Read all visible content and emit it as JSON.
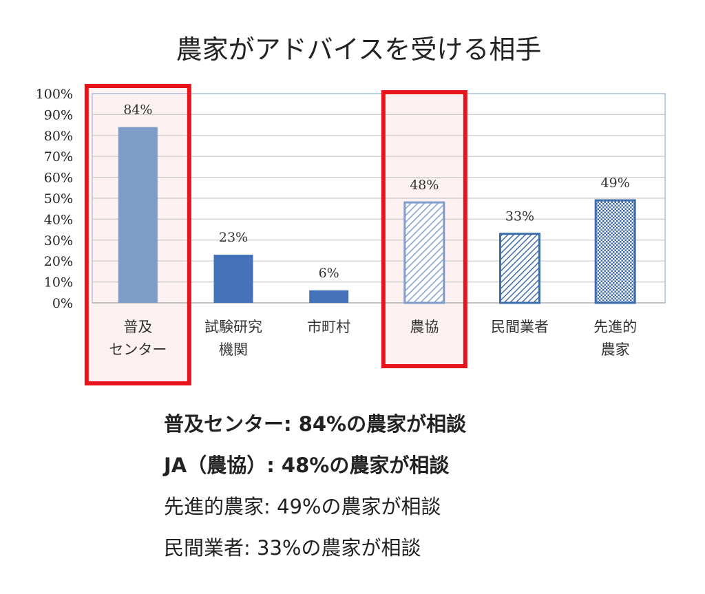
{
  "chart_data": {
    "type": "bar",
    "title": "農家がアドバイスを受ける相手",
    "categories": [
      [
        "普及",
        "センター"
      ],
      [
        "試験研究",
        "機関"
      ],
      [
        "市町村"
      ],
      [
        "農協"
      ],
      [
        "民間業者"
      ],
      [
        "先進的",
        "農家"
      ]
    ],
    "values": [
      84,
      23,
      6,
      48,
      33,
      49
    ],
    "data_labels": [
      "84%",
      "23%",
      "6%",
      "48%",
      "33%",
      "49%"
    ],
    "yticks": [
      "0%",
      "10%",
      "20%",
      "30%",
      "40%",
      "50%",
      "60%",
      "70%",
      "80%",
      "90%",
      "100%"
    ],
    "ylim": [
      0,
      100
    ],
    "grid": true,
    "bar_styles": [
      "solid-light",
      "solid",
      "solid",
      "hatch-light",
      "hatch",
      "crosshatch"
    ],
    "highlighted_categories": [
      "普及センター",
      "農協"
    ],
    "colors": {
      "bar_light": "#7f9cc8",
      "bar": "#4472b8",
      "outline": "#3f6cab",
      "highlight": "#e8141c",
      "highlight_fill": "#fdf1f1",
      "grid": "#c9c9c9"
    }
  },
  "summary": [
    {
      "text": "普及センター: 84%の農家が相談",
      "bold": true
    },
    {
      "text": "JA（農協）: 48%の農家が相談",
      "bold": true
    },
    {
      "text": "先進的農家: 49%の農家が相談",
      "bold": false
    },
    {
      "text": "民間業者: 33%の農家が相談",
      "bold": false
    }
  ]
}
